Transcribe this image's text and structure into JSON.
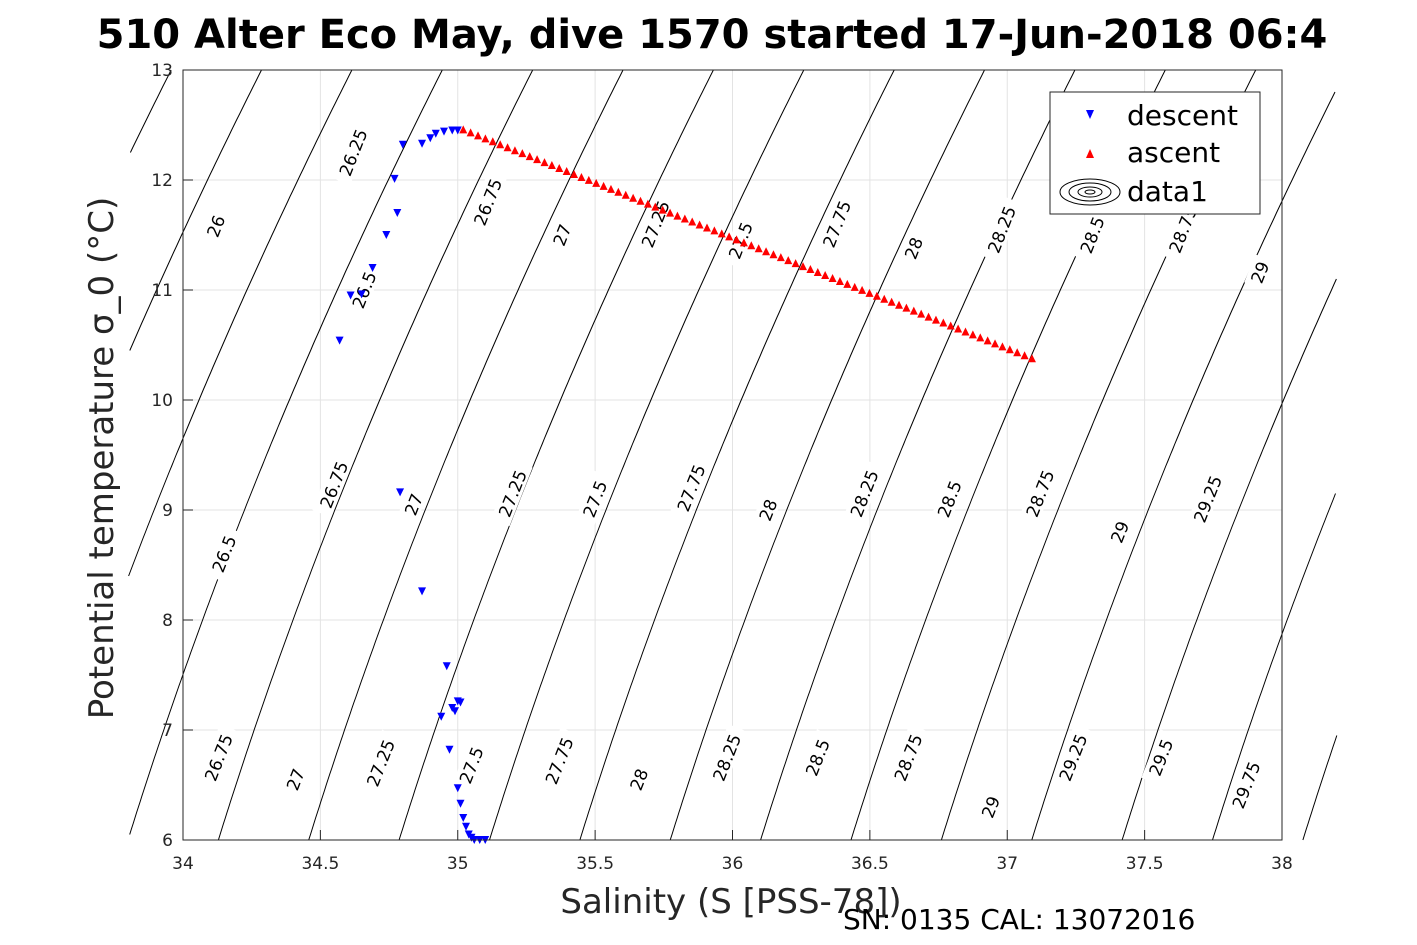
{
  "chart_data": {
    "type": "scatter",
    "title": "510 Alter Eco May, dive 1570 started 17-Jun-2018 06:4",
    "xlabel": "Salinity (S [PSS-78])",
    "ylabel": "Potential temperature σ_0 (°C)",
    "footer": "SN: 0135  CAL: 13072016",
    "xlim": [
      34,
      38
    ],
    "ylim": [
      6,
      13
    ],
    "xticks": [
      "34",
      "34.5",
      "35",
      "35.5",
      "36",
      "36.5",
      "37",
      "37.5",
      "38"
    ],
    "yticks": [
      "6",
      "7",
      "8",
      "9",
      "10",
      "11",
      "12",
      "13"
    ],
    "grid": true,
    "legend_position": "top-right",
    "legend": [
      "descent",
      "ascent",
      "data1"
    ],
    "series": [
      {
        "name": "descent",
        "color": "#0000ff",
        "marker": "triangle-down",
        "x": [
          35.0,
          34.98,
          34.95,
          34.92,
          34.9,
          34.87,
          34.8,
          34.77,
          34.78,
          34.74,
          34.69,
          34.65,
          34.61,
          34.57,
          34.79,
          34.87,
          34.96,
          35.0,
          35.01,
          34.98,
          34.99,
          34.94,
          34.97,
          35.0,
          35.01,
          35.02,
          35.03,
          35.04,
          35.05,
          35.06,
          35.08,
          35.1
        ],
        "y": [
          12.45,
          12.45,
          12.44,
          12.42,
          12.38,
          12.33,
          12.32,
          12.01,
          11.7,
          11.5,
          11.2,
          10.96,
          10.95,
          10.54,
          9.16,
          8.26,
          7.58,
          7.26,
          7.25,
          7.2,
          7.17,
          7.12,
          6.82,
          6.47,
          6.33,
          6.2,
          6.12,
          6.05,
          6.02,
          6.0,
          6.0,
          6.0
        ]
      },
      {
        "name": "ascent",
        "color": "#ff0000",
        "marker": "triangle-up",
        "x_start": 35.02,
        "x_end": 37.09,
        "y_start": 12.46,
        "y_end": 10.38,
        "n_points": 78
      }
    ],
    "contours": [
      {
        "label": "26",
        "labels_at": [
          [
            34.12,
            11.58
          ]
        ]
      },
      {
        "label": "26.25",
        "labels_at": [
          [
            34.62,
            12.25
          ]
        ]
      },
      {
        "label": "26.5",
        "labels_at": [
          [
            34.66,
            11.0
          ],
          [
            34.15,
            8.6
          ]
        ]
      },
      {
        "label": "26.75",
        "labels_at": [
          [
            35.11,
            11.8
          ],
          [
            34.55,
            9.23
          ],
          [
            34.13,
            6.75
          ]
        ]
      },
      {
        "label": "27",
        "labels_at": [
          [
            35.38,
            11.5
          ],
          [
            34.84,
            9.05
          ],
          [
            34.41,
            6.55
          ]
        ]
      },
      {
        "label": "27.25",
        "labels_at": [
          [
            35.72,
            11.6
          ],
          [
            35.2,
            9.15
          ],
          [
            34.72,
            6.7
          ]
        ]
      },
      {
        "label": "27.5",
        "labels_at": [
          [
            36.03,
            11.45
          ],
          [
            35.5,
            9.1
          ],
          [
            35.05,
            6.68
          ]
        ]
      },
      {
        "label": "27.75",
        "labels_at": [
          [
            36.38,
            11.6
          ],
          [
            35.85,
            9.2
          ],
          [
            35.37,
            6.72
          ]
        ]
      },
      {
        "label": "28",
        "labels_at": [
          [
            36.66,
            11.38
          ],
          [
            36.13,
            9.0
          ],
          [
            35.66,
            6.55
          ]
        ]
      },
      {
        "label": "28.25",
        "labels_at": [
          [
            36.98,
            11.55
          ],
          [
            36.48,
            9.15
          ],
          [
            35.98,
            6.75
          ]
        ]
      },
      {
        "label": "28.5",
        "labels_at": [
          [
            37.31,
            11.5
          ],
          [
            36.79,
            9.1
          ],
          [
            36.31,
            6.75
          ]
        ]
      },
      {
        "label": "28.75",
        "labels_at": [
          [
            37.64,
            11.55
          ],
          [
            37.12,
            9.15
          ],
          [
            36.64,
            6.75
          ]
        ]
      },
      {
        "label": "29",
        "labels_at": [
          [
            37.92,
            11.16
          ],
          [
            37.41,
            8.8
          ],
          [
            36.94,
            6.3
          ]
        ]
      },
      {
        "label": "29.25",
        "labels_at": [
          [
            37.73,
            9.1
          ],
          [
            37.24,
            6.75
          ]
        ]
      },
      {
        "label": "29.5",
        "labels_at": [
          [
            37.56,
            6.75
          ]
        ]
      },
      {
        "label": "29.75",
        "labels_at": [
          [
            37.87,
            6.5
          ]
        ]
      }
    ]
  }
}
